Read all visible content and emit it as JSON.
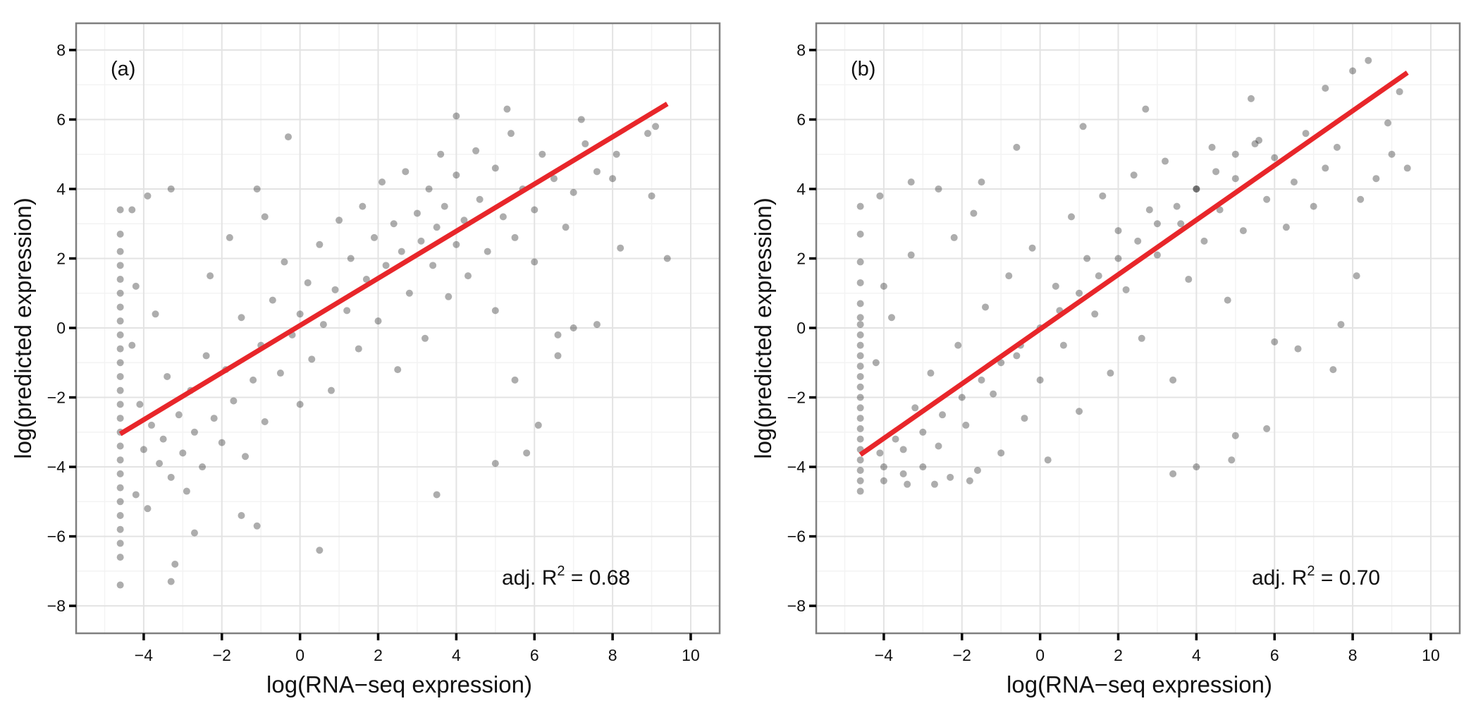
{
  "colors": {
    "points": "#000000",
    "regression_line": "#e8262a",
    "panel_border": "#7f7f7f",
    "grid_major": "#e3e3e3",
    "grid_minor": "#f3f3f3"
  },
  "chart_data": [
    {
      "type": "scatter",
      "panel_label": "(a)",
      "xlabel": "log(RNA−seq expression)",
      "ylabel": "log(predicted expression)",
      "xlim": [
        -5.73,
        10.74
      ],
      "ylim": [
        -8.79,
        8.77
      ],
      "xticks": [
        -4,
        -2,
        0,
        2,
        4,
        6,
        8,
        10
      ],
      "xtick_labels": [
        "−4",
        "−2",
        "0",
        "2",
        "4",
        "6",
        "8",
        "10"
      ],
      "yticks": [
        8,
        6,
        4,
        2,
        0,
        -2,
        -4,
        -6,
        -8
      ],
      "ytick_labels": [
        "8",
        "6",
        "4",
        "2",
        "0",
        "−2",
        "−4",
        "−6",
        "−8"
      ],
      "grid": true,
      "annotation": {
        "prefix": "adj. R",
        "sup": "2",
        "suffix": " = 0.68"
      },
      "regression_line": [
        [
          -4.6,
          -3.05
        ],
        [
          9.4,
          6.45
        ]
      ],
      "points": [
        [
          -4.6,
          -7.4
        ],
        [
          -4.6,
          -6.6
        ],
        [
          -4.6,
          -6.2
        ],
        [
          -4.6,
          -5.8
        ],
        [
          -4.6,
          -5.4
        ],
        [
          -4.6,
          -5.0
        ],
        [
          -4.6,
          -4.6
        ],
        [
          -4.6,
          -4.2
        ],
        [
          -4.6,
          -3.8
        ],
        [
          -4.6,
          -3.4
        ],
        [
          -4.6,
          -3.0
        ],
        [
          -4.6,
          -2.6
        ],
        [
          -4.6,
          -2.2
        ],
        [
          -4.6,
          -1.8
        ],
        [
          -4.6,
          -1.4
        ],
        [
          -4.6,
          -1.0
        ],
        [
          -4.6,
          -0.6
        ],
        [
          -4.6,
          -0.2
        ],
        [
          -4.6,
          0.2
        ],
        [
          -4.6,
          0.6
        ],
        [
          -4.6,
          1.0
        ],
        [
          -4.6,
          1.4
        ],
        [
          -4.6,
          1.8
        ],
        [
          -4.6,
          2.2
        ],
        [
          -4.6,
          2.7
        ],
        [
          -4.6,
          3.4
        ],
        [
          0.5,
          -6.4
        ],
        [
          -3.3,
          -7.3
        ],
        [
          -3.2,
          -6.8
        ],
        [
          -2.7,
          -5.9
        ],
        [
          -1.5,
          -5.4
        ],
        [
          -1.1,
          -5.7
        ],
        [
          3.5,
          -4.8
        ],
        [
          5.0,
          -3.9
        ],
        [
          5.8,
          -3.6
        ],
        [
          6.1,
          -2.8
        ],
        [
          6.6,
          -0.8
        ],
        [
          7.0,
          0.0
        ],
        [
          7.6,
          0.1
        ],
        [
          8.2,
          2.3
        ],
        [
          9.4,
          2.0
        ],
        [
          9.0,
          3.8
        ],
        [
          8.0,
          4.3
        ],
        [
          8.9,
          5.6
        ],
        [
          9.1,
          5.8
        ],
        [
          5.3,
          6.3
        ],
        [
          4.0,
          6.1
        ],
        [
          -0.3,
          5.5
        ],
        [
          -1.1,
          4.0
        ],
        [
          -3.3,
          4.0
        ],
        [
          -4.3,
          3.4
        ],
        [
          -3.9,
          3.8
        ],
        [
          7.2,
          6.0
        ],
        [
          8.1,
          5.0
        ],
        [
          6.6,
          -0.2
        ],
        [
          5.5,
          -1.5
        ],
        [
          -4.0,
          -3.5
        ],
        [
          -3.8,
          -2.8
        ],
        [
          -3.6,
          -3.9
        ],
        [
          -3.5,
          -3.2
        ],
        [
          -3.3,
          -4.3
        ],
        [
          -3.1,
          -2.5
        ],
        [
          -3.0,
          -3.6
        ],
        [
          -2.8,
          -1.8
        ],
        [
          -2.7,
          -3.0
        ],
        [
          -2.5,
          -4.0
        ],
        [
          -2.4,
          -0.8
        ],
        [
          -2.2,
          -2.6
        ],
        [
          -2.0,
          -3.3
        ],
        [
          -1.9,
          -1.2
        ],
        [
          -1.7,
          -2.1
        ],
        [
          -1.5,
          0.3
        ],
        [
          -1.4,
          -3.7
        ],
        [
          -1.2,
          -1.5
        ],
        [
          -1.0,
          -0.5
        ],
        [
          -0.9,
          -2.7
        ],
        [
          -0.7,
          0.8
        ],
        [
          -0.5,
          -1.3
        ],
        [
          -0.4,
          1.9
        ],
        [
          -0.2,
          -0.2
        ],
        [
          0.0,
          0.4
        ],
        [
          0.0,
          -2.2
        ],
        [
          0.2,
          1.3
        ],
        [
          0.3,
          -0.9
        ],
        [
          0.5,
          2.4
        ],
        [
          0.6,
          0.1
        ],
        [
          0.8,
          -1.8
        ],
        [
          0.9,
          1.1
        ],
        [
          1.0,
          3.1
        ],
        [
          1.2,
          0.5
        ],
        [
          1.3,
          2.0
        ],
        [
          1.5,
          -0.6
        ],
        [
          1.6,
          3.5
        ],
        [
          1.7,
          1.4
        ],
        [
          1.9,
          2.6
        ],
        [
          2.0,
          0.2
        ],
        [
          2.1,
          4.2
        ],
        [
          2.2,
          1.8
        ],
        [
          2.4,
          3.0
        ],
        [
          2.5,
          -1.2
        ],
        [
          2.6,
          2.2
        ],
        [
          2.7,
          4.5
        ],
        [
          2.8,
          1.0
        ],
        [
          3.0,
          3.3
        ],
        [
          3.1,
          2.5
        ],
        [
          3.2,
          -0.3
        ],
        [
          3.3,
          4.0
        ],
        [
          3.4,
          1.8
        ],
        [
          3.5,
          2.9
        ],
        [
          3.6,
          5.0
        ],
        [
          3.7,
          3.5
        ],
        [
          3.8,
          0.9
        ],
        [
          4.0,
          2.4
        ],
        [
          4.0,
          4.4
        ],
        [
          4.2,
          3.1
        ],
        [
          4.3,
          1.5
        ],
        [
          4.5,
          5.1
        ],
        [
          4.6,
          3.7
        ],
        [
          4.8,
          2.2
        ],
        [
          5.0,
          4.6
        ],
        [
          5.0,
          0.5
        ],
        [
          5.2,
          3.2
        ],
        [
          5.4,
          5.6
        ],
        [
          5.5,
          2.6
        ],
        [
          5.7,
          4.0
        ],
        [
          6.0,
          3.4
        ],
        [
          6.0,
          1.9
        ],
        [
          6.2,
          5.0
        ],
        [
          6.5,
          4.3
        ],
        [
          6.8,
          2.9
        ],
        [
          7.0,
          3.9
        ],
        [
          7.3,
          5.3
        ],
        [
          7.6,
          4.5
        ],
        [
          -4.2,
          -4.8
        ],
        [
          -4.1,
          -2.2
        ],
        [
          -3.9,
          -5.2
        ],
        [
          -3.4,
          -1.4
        ],
        [
          -2.9,
          -4.7
        ],
        [
          -4.3,
          -0.5
        ],
        [
          -4.2,
          1.2
        ],
        [
          -3.7,
          0.4
        ],
        [
          -2.3,
          1.5
        ],
        [
          -1.8,
          2.6
        ],
        [
          -0.9,
          3.2
        ]
      ]
    },
    {
      "type": "scatter",
      "panel_label": "(b)",
      "xlabel": "log(RNA−seq expression)",
      "ylabel": "log(predicted expression)",
      "xlim": [
        -5.73,
        10.74
      ],
      "ylim": [
        -8.79,
        8.77
      ],
      "xticks": [
        -4,
        -2,
        0,
        2,
        4,
        6,
        8,
        10
      ],
      "xtick_labels": [
        "−4",
        "−2",
        "0",
        "2",
        "4",
        "6",
        "8",
        "10"
      ],
      "yticks": [
        8,
        6,
        4,
        2,
        0,
        -2,
        -4,
        -6,
        -8
      ],
      "ytick_labels": [
        "8",
        "6",
        "4",
        "2",
        "0",
        "−2",
        "−4",
        "−6",
        "−8"
      ],
      "grid": true,
      "annotation": {
        "prefix": "adj. R",
        "sup": "2",
        "suffix": " = 0.70"
      },
      "regression_line": [
        [
          -4.6,
          -3.65
        ],
        [
          9.4,
          7.35
        ]
      ],
      "points": [
        [
          -4.6,
          -4.7
        ],
        [
          -4.6,
          -4.4
        ],
        [
          -4.6,
          -4.1
        ],
        [
          -4.6,
          -3.8
        ],
        [
          -4.6,
          -3.5
        ],
        [
          -4.6,
          -3.2
        ],
        [
          -4.6,
          -2.9
        ],
        [
          -4.6,
          -2.6
        ],
        [
          -4.6,
          -2.3
        ],
        [
          -4.6,
          -2.0
        ],
        [
          -4.6,
          -1.7
        ],
        [
          -4.6,
          -1.4
        ],
        [
          -4.6,
          -1.1
        ],
        [
          -4.6,
          -0.8
        ],
        [
          -4.6,
          -0.5
        ],
        [
          -4.6,
          -0.2
        ],
        [
          -4.6,
          0.1
        ],
        [
          -4.6,
          0.3
        ],
        [
          -4.6,
          0.7
        ],
        [
          -4.6,
          1.3
        ],
        [
          -4.6,
          1.9
        ],
        [
          -4.6,
          2.7
        ],
        [
          -4.6,
          3.5
        ],
        [
          -4.0,
          -4.0
        ],
        [
          -3.0,
          -3.0
        ],
        [
          -2.0,
          -2.0
        ],
        [
          -1.0,
          -1.0
        ],
        [
          0.0,
          0.0
        ],
        [
          1.0,
          1.0
        ],
        [
          2.0,
          2.0
        ],
        [
          3.0,
          3.0
        ],
        [
          4.0,
          4.0
        ],
        [
          5.0,
          5.0
        ],
        [
          5.6,
          5.4
        ],
        [
          -3.5,
          -3.5
        ],
        [
          -2.5,
          -2.5
        ],
        [
          -1.5,
          -1.5
        ],
        [
          -0.5,
          -0.5
        ],
        [
          0.5,
          0.5
        ],
        [
          1.5,
          1.5
        ],
        [
          2.5,
          2.5
        ],
        [
          3.5,
          3.5
        ],
        [
          4.5,
          4.5
        ],
        [
          8.4,
          7.7
        ],
        [
          8.0,
          7.4
        ],
        [
          9.4,
          4.6
        ],
        [
          9.0,
          5.0
        ],
        [
          8.6,
          4.3
        ],
        [
          8.2,
          3.7
        ],
        [
          8.1,
          1.5
        ],
        [
          7.7,
          0.1
        ],
        [
          7.5,
          -1.2
        ],
        [
          6.6,
          -0.6
        ],
        [
          6.0,
          -0.4
        ],
        [
          5.8,
          -2.9
        ],
        [
          5.0,
          -3.1
        ],
        [
          4.9,
          -3.8
        ],
        [
          4.0,
          -4.0
        ],
        [
          3.4,
          -4.2
        ],
        [
          1.1,
          5.8
        ],
        [
          -0.6,
          5.2
        ],
        [
          -1.5,
          4.2
        ],
        [
          -3.3,
          4.2
        ],
        [
          -4.1,
          3.8
        ],
        [
          -2.6,
          4.0
        ],
        [
          2.7,
          6.3
        ],
        [
          5.4,
          6.6
        ],
        [
          7.3,
          6.9
        ],
        [
          8.9,
          5.9
        ],
        [
          9.2,
          6.8
        ],
        [
          -4.0,
          -4.4
        ],
        [
          -3.7,
          -3.2
        ],
        [
          -3.5,
          -4.2
        ],
        [
          -3.2,
          -2.3
        ],
        [
          -3.0,
          -4.0
        ],
        [
          -2.8,
          -1.3
        ],
        [
          -2.6,
          -3.4
        ],
        [
          -2.3,
          -4.3
        ],
        [
          -2.1,
          -0.5
        ],
        [
          -1.9,
          -2.8
        ],
        [
          -1.6,
          -4.1
        ],
        [
          -1.4,
          0.6
        ],
        [
          -1.2,
          -1.9
        ],
        [
          -1.0,
          -3.6
        ],
        [
          -0.8,
          1.5
        ],
        [
          -0.6,
          -0.8
        ],
        [
          -0.4,
          -2.6
        ],
        [
          -0.2,
          2.3
        ],
        [
          0.0,
          -1.5
        ],
        [
          0.2,
          -3.8
        ],
        [
          0.4,
          1.2
        ],
        [
          0.6,
          -0.5
        ],
        [
          0.8,
          3.2
        ],
        [
          1.0,
          -2.4
        ],
        [
          1.2,
          2.0
        ],
        [
          1.4,
          0.4
        ],
        [
          1.6,
          3.8
        ],
        [
          1.8,
          -1.3
        ],
        [
          2.0,
          2.8
        ],
        [
          2.2,
          1.1
        ],
        [
          2.4,
          4.4
        ],
        [
          2.6,
          -0.3
        ],
        [
          2.8,
          3.4
        ],
        [
          3.0,
          2.1
        ],
        [
          3.2,
          4.8
        ],
        [
          3.4,
          -1.5
        ],
        [
          3.6,
          3.0
        ],
        [
          3.8,
          1.4
        ],
        [
          4.0,
          4.0
        ],
        [
          4.2,
          2.5
        ],
        [
          4.4,
          5.2
        ],
        [
          4.6,
          3.4
        ],
        [
          4.8,
          0.8
        ],
        [
          5.0,
          4.3
        ],
        [
          5.2,
          2.8
        ],
        [
          5.5,
          5.3
        ],
        [
          5.8,
          3.7
        ],
        [
          6.0,
          4.9
        ],
        [
          6.3,
          2.9
        ],
        [
          6.5,
          4.2
        ],
        [
          6.8,
          5.6
        ],
        [
          7.0,
          3.5
        ],
        [
          7.3,
          4.6
        ],
        [
          7.6,
          5.2
        ],
        [
          -4.2,
          -1.0
        ],
        [
          -4.0,
          1.2
        ],
        [
          -3.8,
          0.3
        ],
        [
          -3.3,
          2.1
        ],
        [
          -2.2,
          2.6
        ],
        [
          -1.7,
          3.3
        ],
        [
          -4.1,
          -3.6
        ],
        [
          -3.4,
          -4.5
        ],
        [
          -2.7,
          -4.5
        ],
        [
          -1.8,
          -4.4
        ]
      ]
    }
  ]
}
